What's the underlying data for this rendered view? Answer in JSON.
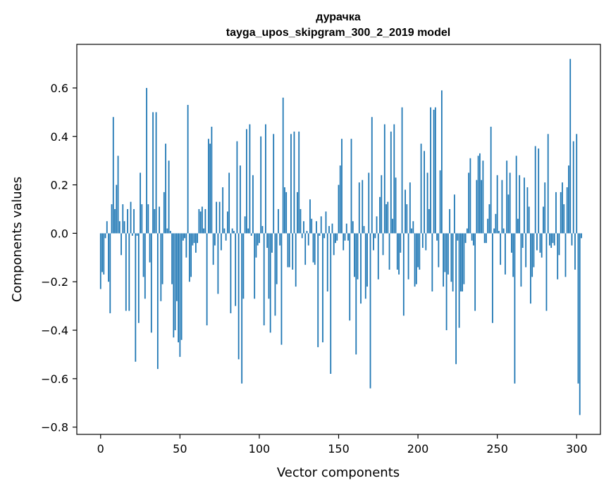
{
  "chart_data": {
    "type": "bar",
    "title_line1": "дурачка",
    "title_line2": "tayga_upos_skipgram_300_2_2019 model",
    "xlabel": "Vector components",
    "ylabel": "Components values",
    "xlim": [
      -15,
      315
    ],
    "ylim": [
      -0.83,
      0.78
    ],
    "xticks": [
      0,
      50,
      100,
      150,
      200,
      250,
      300
    ],
    "yticks": [
      -0.8,
      -0.6,
      -0.4,
      -0.2,
      0.0,
      0.2,
      0.4,
      0.6
    ],
    "ytick_labels": [
      "−0.8",
      "−0.6",
      "−0.4",
      "−0.2",
      "0.0",
      "0.2",
      "0.4",
      "0.6"
    ],
    "xtick_labels": [
      "0",
      "50",
      "100",
      "150",
      "200",
      "250",
      "300"
    ],
    "bar_color": "#1f77b4",
    "grid": false,
    "values": [
      -0.23,
      -0.16,
      -0.17,
      -0.02,
      0.05,
      -0.2,
      -0.33,
      0.12,
      0.48,
      0.1,
      0.2,
      0.32,
      0.05,
      -0.09,
      0.12,
      0.05,
      -0.32,
      0.1,
      -0.32,
      0.13,
      -0.01,
      0.1,
      -0.53,
      -0.01,
      -0.37,
      0.25,
      0.12,
      -0.18,
      -0.27,
      0.6,
      0.12,
      -0.12,
      -0.41,
      0.5,
      0.1,
      0.5,
      -0.56,
      0.11,
      -0.28,
      -0.21,
      0.17,
      0.37,
      0.02,
      0.3,
      0.01,
      -0.21,
      -0.43,
      -0.4,
      -0.28,
      -0.45,
      -0.51,
      -0.44,
      -0.03,
      -0.02,
      -0.1,
      0.53,
      -0.2,
      -0.18,
      -0.05,
      -0.04,
      -0.08,
      -0.04,
      0.1,
      0.09,
      0.11,
      0.02,
      0.1,
      -0.38,
      0.39,
      0.37,
      0.44,
      -0.13,
      -0.05,
      0.13,
      -0.25,
      0.13,
      -0.07,
      0.19,
      0.02,
      -0.03,
      0.09,
      0.25,
      -0.33,
      0.02,
      0.01,
      -0.3,
      0.38,
      -0.52,
      0.28,
      -0.62,
      -0.27,
      0.07,
      0.43,
      0.02,
      0.45,
      -0.01,
      0.24,
      -0.27,
      -0.1,
      -0.05,
      -0.04,
      0.4,
      0.03,
      -0.38,
      0.45,
      -0.06,
      -0.27,
      -0.41,
      -0.08,
      0.41,
      -0.34,
      -0.21,
      0.1,
      -0.05,
      -0.46,
      0.56,
      0.19,
      0.17,
      -0.14,
      -0.14,
      0.41,
      -0.15,
      0.42,
      -0.22,
      0.17,
      0.42,
      0.1,
      -0.02,
      0.05,
      -0.13,
      0.01,
      -0.05,
      0.14,
      0.06,
      -0.12,
      -0.13,
      0.05,
      -0.47,
      -0.01,
      0.07,
      -0.45,
      -0.02,
      0.09,
      -0.24,
      0.03,
      -0.58,
      0.04,
      -0.09,
      -0.04,
      -0.03,
      0.2,
      0.28,
      0.39,
      -0.07,
      -0.03,
      0.04,
      -0.03,
      -0.36,
      0.39,
      0.05,
      -0.18,
      -0.5,
      -0.19,
      0.21,
      -0.29,
      0.22,
      0.03,
      -0.27,
      -0.22,
      0.25,
      -0.64,
      0.48,
      -0.07,
      -0.02,
      0.07,
      -0.19,
      0.15,
      0.24,
      -0.09,
      0.45,
      0.12,
      0.13,
      -0.15,
      0.42,
      0.06,
      0.45,
      0.23,
      -0.15,
      -0.17,
      -0.08,
      0.52,
      -0.34,
      0.18,
      0.12,
      -0.19,
      0.21,
      0.02,
      0.05,
      -0.22,
      -0.21,
      -0.14,
      -0.15,
      0.37,
      -0.06,
      0.34,
      -0.07,
      0.25,
      0.1,
      0.52,
      -0.24,
      0.51,
      0.52,
      -0.03,
      -0.14,
      0.26,
      0.59,
      -0.22,
      -0.16,
      -0.4,
      -0.17,
      0.1,
      -0.2,
      -0.24,
      0.16,
      -0.54,
      -0.03,
      -0.39,
      -0.24,
      -0.24,
      -0.21,
      -0.04,
      0.02,
      0.25,
      0.31,
      -0.03,
      -0.05,
      -0.32,
      0.22,
      0.32,
      0.33,
      0.22,
      0.3,
      -0.04,
      -0.04,
      0.06,
      0.12,
      0.44,
      -0.37,
      0.02,
      0.08,
      0.24,
      0.01,
      -0.13,
      0.22,
      0.02,
      -0.17,
      0.3,
      0.16,
      0.25,
      -0.08,
      -0.18,
      -0.62,
      0.32,
      0.06,
      0.24,
      -0.22,
      -0.06,
      0.23,
      -0.14,
      0.19,
      0.11,
      -0.29,
      -0.18,
      -0.14,
      0.36,
      -0.07,
      0.35,
      -0.08,
      -0.1,
      0.11,
      0.21,
      -0.32,
      0.41,
      -0.05,
      -0.06,
      -0.04,
      -0.05,
      0.17,
      -0.19,
      -0.09,
      0.17,
      0.21,
      0.12,
      -0.18,
      0.19,
      0.28,
      0.72,
      -0.05,
      0.38,
      -0.15,
      0.41,
      -0.62,
      -0.75,
      -0.02
    ]
  }
}
